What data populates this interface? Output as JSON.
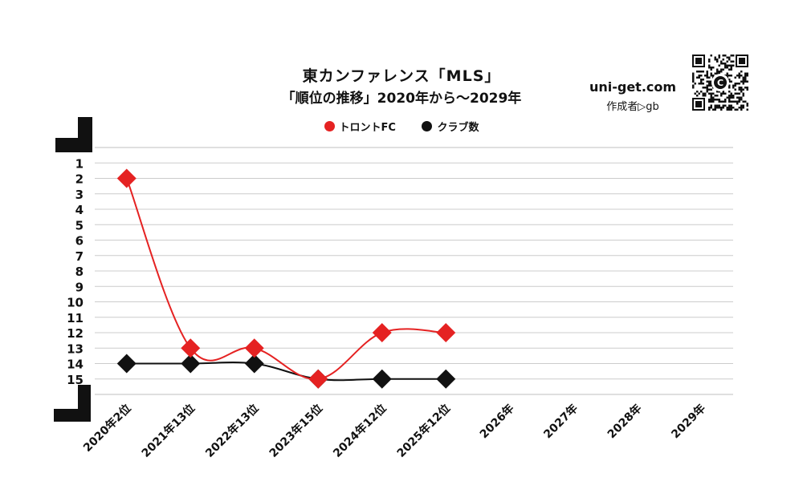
{
  "header": {
    "title": "東カンファレンス「MLS」",
    "subtitle": "「順位の推移」2020年から～2029年",
    "site": "uni-get.com",
    "author": "作成者▷gb",
    "qr_center_label": "C"
  },
  "legend": [
    {
      "name": "トロントFC",
      "color": "#e52222"
    },
    {
      "name": "クラブ数",
      "color": "#111111"
    }
  ],
  "colors": {
    "toronto": "#e52222",
    "clubs": "#111111",
    "grid": "#cccccc"
  },
  "chart_data": {
    "type": "line",
    "x": [
      "2020年2位",
      "2021年13位",
      "2022年13位",
      "2023年15位",
      "2024年12位",
      "2025年12位",
      "2026年",
      "2027年",
      "2028年",
      "2029年"
    ],
    "y_ticks": [
      1,
      2,
      3,
      4,
      5,
      6,
      7,
      8,
      9,
      10,
      11,
      12,
      13,
      14,
      15
    ],
    "ylim": [
      0,
      16
    ],
    "y_inverted": true,
    "grid": true,
    "legend_position": "top",
    "series": [
      {
        "name": "トロントFC",
        "values": [
          2,
          13,
          13,
          15,
          12,
          12,
          null,
          null,
          null,
          null
        ],
        "color": "#e52222",
        "marker": "diamond"
      },
      {
        "name": "クラブ数",
        "values": [
          14,
          14,
          14,
          15,
          15,
          15,
          null,
          null,
          null,
          null
        ],
        "color": "#111111",
        "marker": "diamond"
      }
    ]
  }
}
